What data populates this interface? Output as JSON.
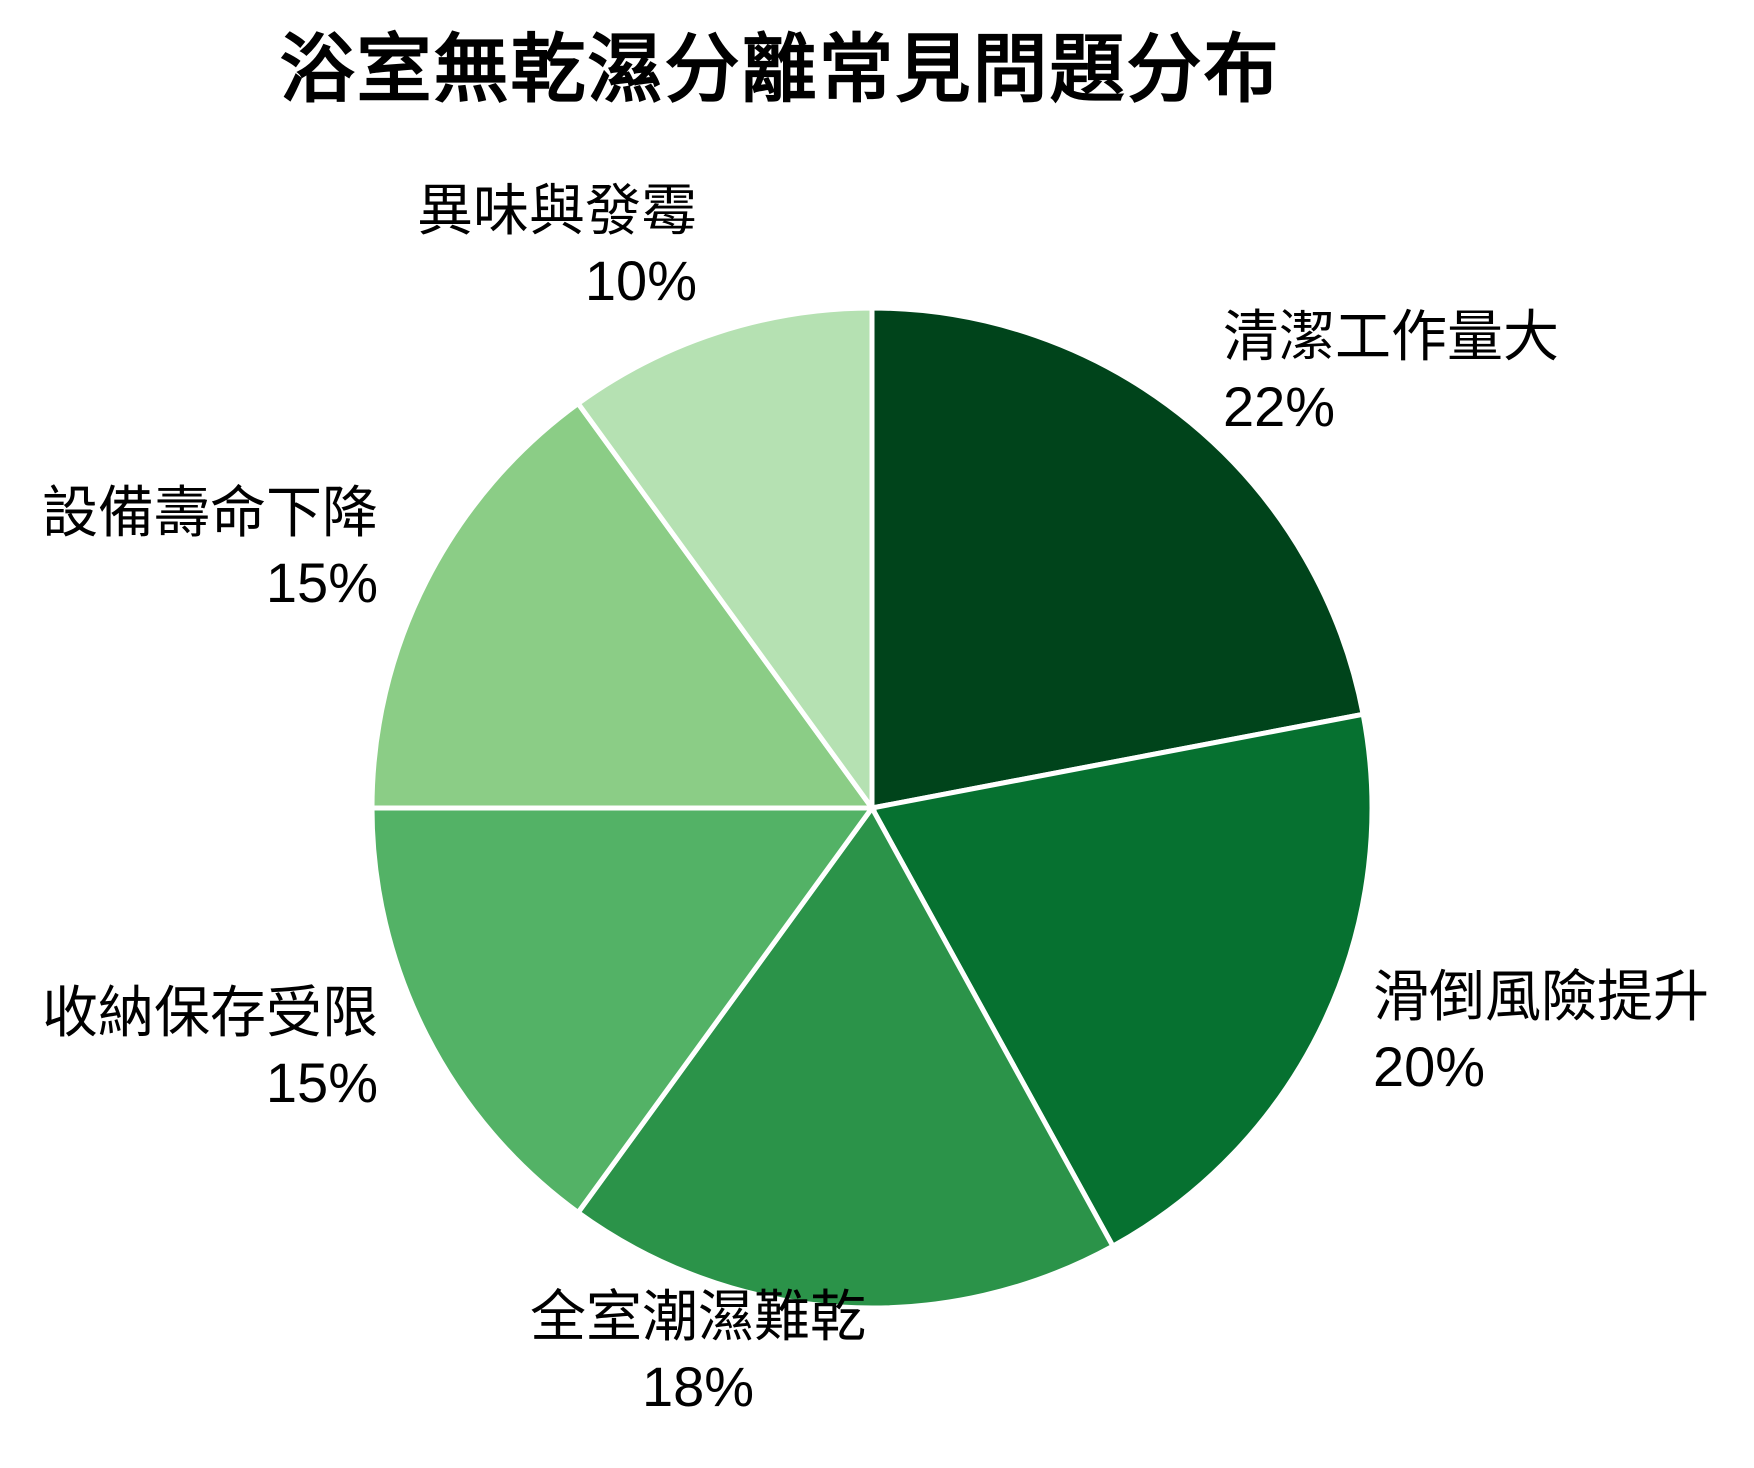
{
  "title": "浴室無乾濕分離常見問題分布",
  "chart_data": {
    "type": "pie",
    "title": "浴室無乾濕分離常見問題分布",
    "start_angle_deg": 90,
    "direction": "clockwise",
    "legend": "none",
    "background": "#ffffff",
    "text_color": "#000000",
    "wedge_border_color": "#ffffff",
    "slices": [
      {
        "label": "清潔工作量大",
        "value": 22,
        "pct_label": "22%",
        "color": "#00441b"
      },
      {
        "label": "滑倒風險提升",
        "value": 20,
        "pct_label": "20%",
        "color": "#067130"
      },
      {
        "label": "全室潮濕難乾",
        "value": 18,
        "pct_label": "18%",
        "color": "#2b9349"
      },
      {
        "label": "收納保存受限",
        "value": 15,
        "pct_label": "15%",
        "color": "#53b266"
      },
      {
        "label": "設備壽命下降",
        "value": 15,
        "pct_label": "15%",
        "color": "#8bcd86"
      },
      {
        "label": "異味與發霉",
        "value": 10,
        "pct_label": "10%",
        "color": "#b5e1b2"
      }
    ]
  }
}
